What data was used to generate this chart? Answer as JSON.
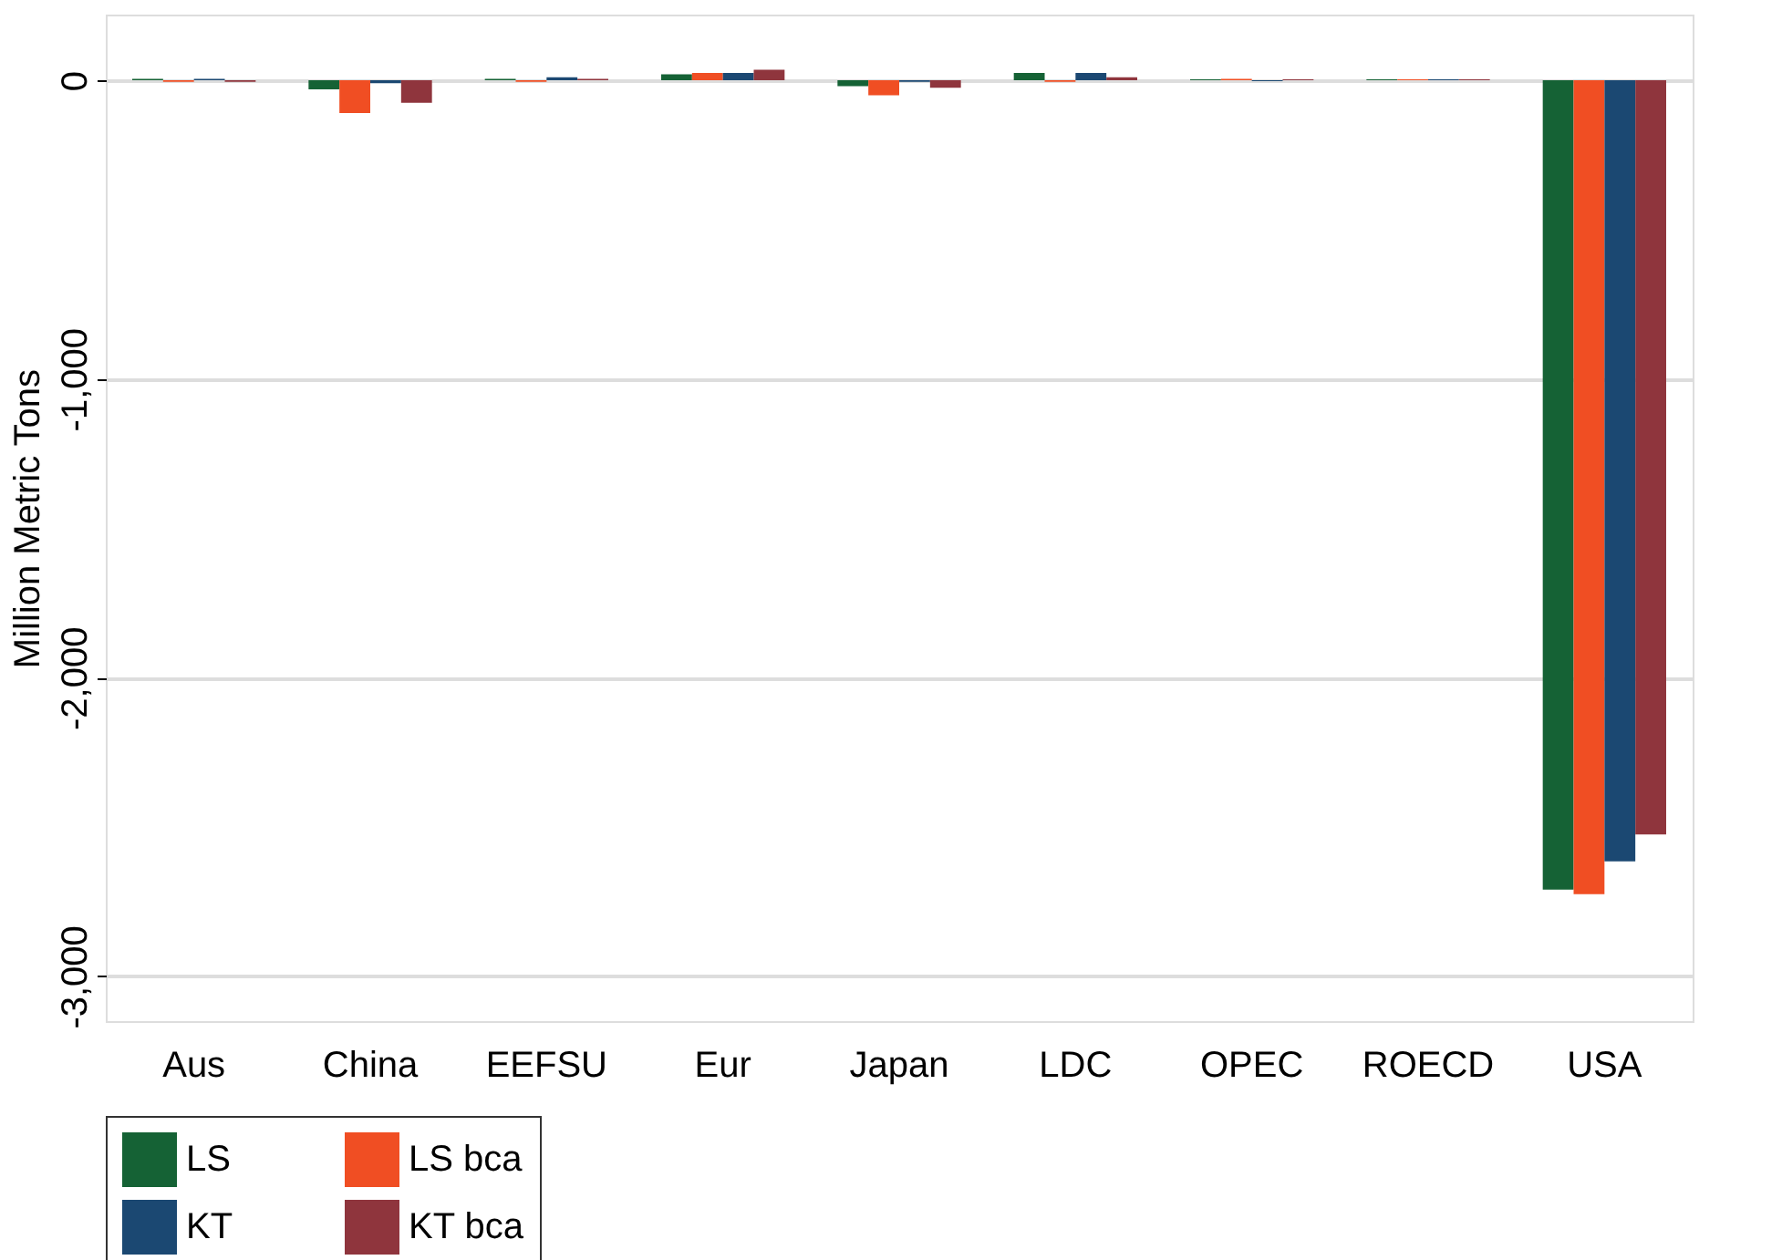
{
  "chart_data": {
    "type": "bar",
    "ylabel": "Million Metric Tons",
    "categories": [
      "Aus",
      "China",
      "EEFSU",
      "Eur",
      "Japan",
      "LDC",
      "OPEC",
      "ROECD",
      "USA"
    ],
    "series": [
      {
        "name": "LS",
        "color": "#156235",
        "values": [
          5,
          -30,
          5,
          20,
          -20,
          25,
          3,
          3,
          -2710
        ]
      },
      {
        "name": "LS bca",
        "color": "#f04e23",
        "values": [
          -5,
          -110,
          -5,
          25,
          -50,
          -5,
          5,
          3,
          -2725
        ]
      },
      {
        "name": "KT",
        "color": "#1b4872",
        "values": [
          5,
          -10,
          10,
          25,
          -5,
          25,
          -3,
          3,
          -2615
        ]
      },
      {
        "name": "KT bca",
        "color": "#8f353d",
        "values": [
          -5,
          -75,
          5,
          35,
          -25,
          10,
          3,
          3,
          -2525
        ]
      }
    ],
    "ylim": [
      -3150,
      220
    ],
    "yticks": [
      {
        "value": 0,
        "label": "0"
      },
      {
        "value": -1000,
        "label": "-1,000"
      },
      {
        "value": -2000,
        "label": "-2,000"
      },
      {
        "value": -3000,
        "label": "-3,000"
      }
    ],
    "grid": "y",
    "legend": "bottom"
  }
}
